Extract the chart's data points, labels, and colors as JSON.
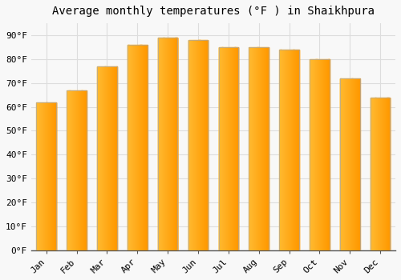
{
  "title": "Average monthly temperatures (°F ) in Shaikhpura",
  "months": [
    "Jan",
    "Feb",
    "Mar",
    "Apr",
    "May",
    "Jun",
    "Jul",
    "Aug",
    "Sep",
    "Oct",
    "Nov",
    "Dec"
  ],
  "values": [
    62,
    67,
    77,
    86,
    89,
    88,
    85,
    85,
    84,
    80,
    72,
    64
  ],
  "bar_color_left": "#FFBB33",
  "bar_color_right": "#FF9900",
  "bar_edge_color": "#AAAAAA",
  "background_color": "#F8F8F8",
  "plot_bg_color": "#F8F8F8",
  "grid_color": "#DDDDDD",
  "ylim": [
    0,
    95
  ],
  "yticks": [
    0,
    10,
    20,
    30,
    40,
    50,
    60,
    70,
    80,
    90
  ],
  "ytick_labels": [
    "0°F",
    "10°F",
    "20°F",
    "30°F",
    "40°F",
    "50°F",
    "60°F",
    "70°F",
    "80°F",
    "90°F"
  ],
  "title_fontsize": 10,
  "tick_fontsize": 8,
  "font_family": "monospace",
  "bar_width": 0.65
}
